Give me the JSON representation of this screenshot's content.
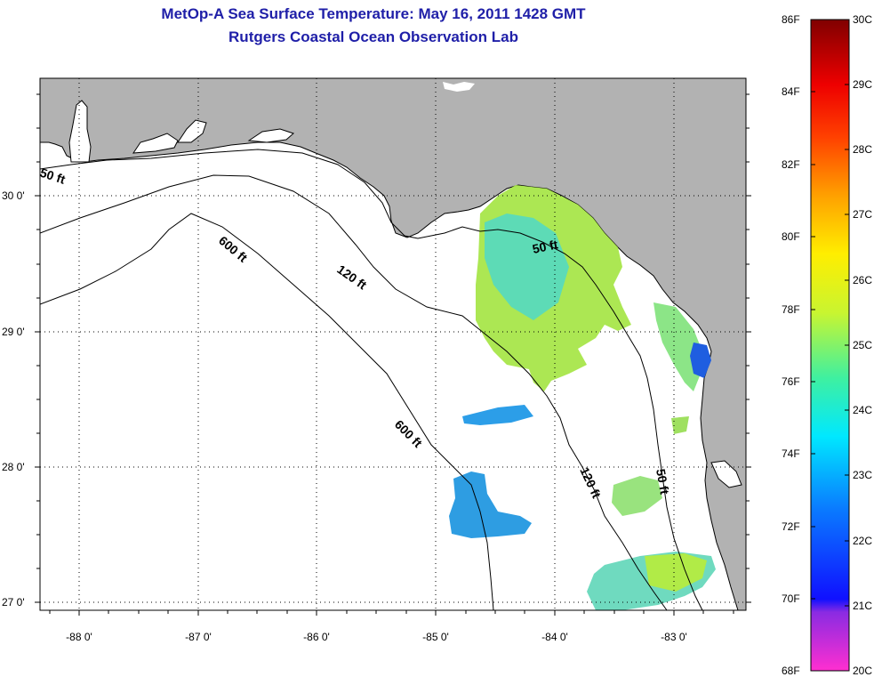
{
  "title": {
    "line1": "MetOp-A Sea Surface Temperature:  May 16, 2011 1428 GMT",
    "line2": "Rutgers Coastal Ocean Observation Lab"
  },
  "map": {
    "lon_ticks": [
      "-88 0'",
      "-87 0'",
      "-86 0'",
      "-85 0'",
      "-84 0'",
      "-83 0'"
    ],
    "lat_ticks": [
      "30 0'",
      "29 0'",
      "28 0'",
      "27 0'"
    ],
    "contour_labels": [
      "50 ft",
      "600 ft",
      "120 ft",
      "50 ft",
      "600 ft",
      "120 ft",
      "50 ft"
    ],
    "colors": {
      "land": "#b2b2b2",
      "water": "#ffffff",
      "contour": "#000000",
      "grid": "#000000"
    }
  },
  "colorbar": {
    "fahrenheit": [
      "86F",
      "84F",
      "82F",
      "80F",
      "78F",
      "76F",
      "74F",
      "72F",
      "70F",
      "68F"
    ],
    "celsius": [
      "30C",
      "29C",
      "28C",
      "27C",
      "26C",
      "25C",
      "24C",
      "23C",
      "22C",
      "21C",
      "20C"
    ]
  },
  "sst_patches": [
    {
      "name": "big-sst-patch",
      "color": "#b6ec3c"
    },
    {
      "name": "nearshore-cyan-patch",
      "color": "#3ee0d8"
    },
    {
      "name": "cold-blue-patch",
      "color": "#1c6ee8"
    },
    {
      "name": "offshore-blue-patch",
      "color": "#2c9ee8"
    }
  ]
}
